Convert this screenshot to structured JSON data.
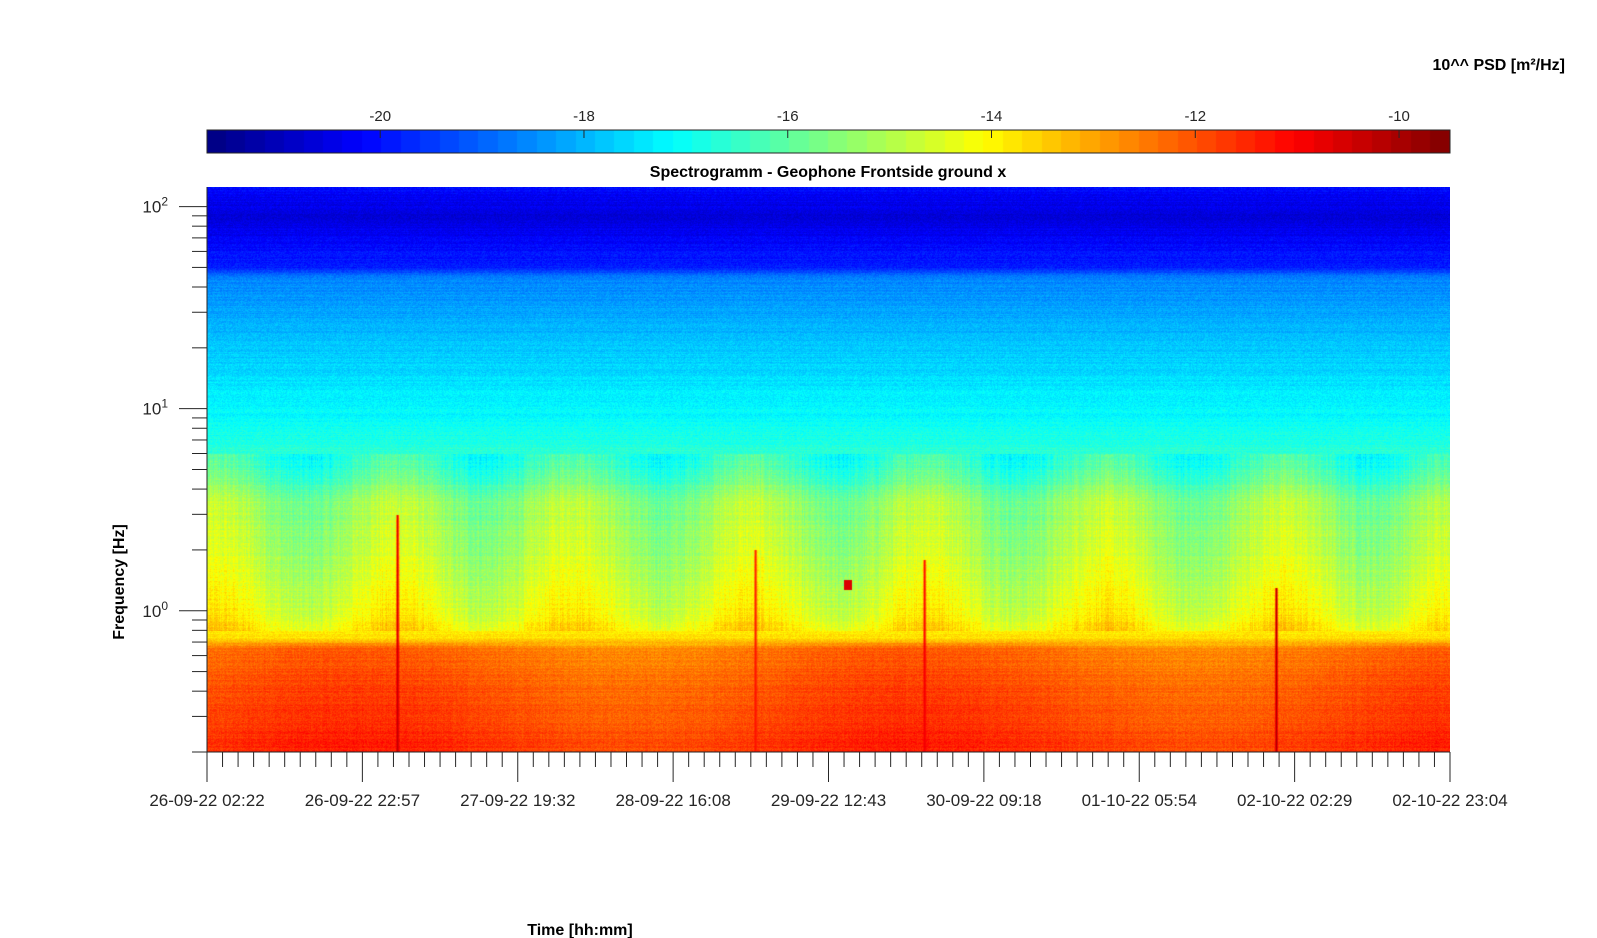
{
  "chart_data": {
    "type": "heatmap",
    "title": "Spectrogramm - Geophone Frontside ground x",
    "xlabel": "Time [hh:mm]",
    "ylabel": "Frequency [Hz]",
    "colorbar_label": "10^^ PSD [m²/Hz]",
    "colormap": "jet",
    "y_scale": "log",
    "ylim": [
      0.2,
      125
    ],
    "x_tick_labels": [
      "26-09-22 02:22",
      "26-09-22 22:57",
      "27-09-22 19:32",
      "28-09-22 16:08",
      "29-09-22 12:43",
      "30-09-22 09:18",
      "01-10-22 05:54",
      "02-10-22 02:29",
      "02-10-22 23:04"
    ],
    "y_ticks": [
      {
        "value": 1,
        "base": "10",
        "exp": "0"
      },
      {
        "value": 10,
        "base": "10",
        "exp": "1"
      },
      {
        "value": 100,
        "base": "10",
        "exp": "2"
      }
    ],
    "colorbar_ticks": [
      -20,
      -18,
      -16,
      -14,
      -12,
      -10
    ],
    "clim": [
      -21.7,
      -9.5
    ],
    "grid": false,
    "colorbar_position": "top",
    "psd_profile_log10": [
      {
        "freq_hz": 0.2,
        "psd": -11.6
      },
      {
        "freq_hz": 0.4,
        "psd": -12.0
      },
      {
        "freq_hz": 0.65,
        "psd": -12.4
      },
      {
        "freq_hz": 0.75,
        "psd": -13.8
      },
      {
        "freq_hz": 1.0,
        "psd": -14.3
      },
      {
        "freq_hz": 2.0,
        "psd": -15.0
      },
      {
        "freq_hz": 3.5,
        "psd": -15.3
      },
      {
        "freq_hz": 5.0,
        "psd": -16.4
      },
      {
        "freq_hz": 10.0,
        "psd": -17.2
      },
      {
        "freq_hz": 20.0,
        "psd": -17.8
      },
      {
        "freq_hz": 45.0,
        "psd": -18.6
      },
      {
        "freq_hz": 50.0,
        "psd": -19.8
      },
      {
        "freq_hz": 90.0,
        "psd": -20.6
      },
      {
        "freq_hz": 125.0,
        "psd": -20.1
      }
    ],
    "transient_events": [
      {
        "time": "26-09-22 ~19:30",
        "max_freq_hz": 3.0,
        "psd_peak": -10.2
      },
      {
        "time": "29-09-22 ~02:00",
        "max_freq_hz": 2.0,
        "psd_peak": -11.2
      },
      {
        "time": "30-09-22 ~03:00",
        "max_freq_hz": 1.8,
        "psd_peak": -10.8
      },
      {
        "time": "02-10-22 ~00:00",
        "max_freq_hz": 1.3,
        "psd_peak": -10.0
      }
    ],
    "spot_event": {
      "time": "29-09-22 ~14:30",
      "freq_hz": 1.35,
      "psd": -10.6
    }
  }
}
